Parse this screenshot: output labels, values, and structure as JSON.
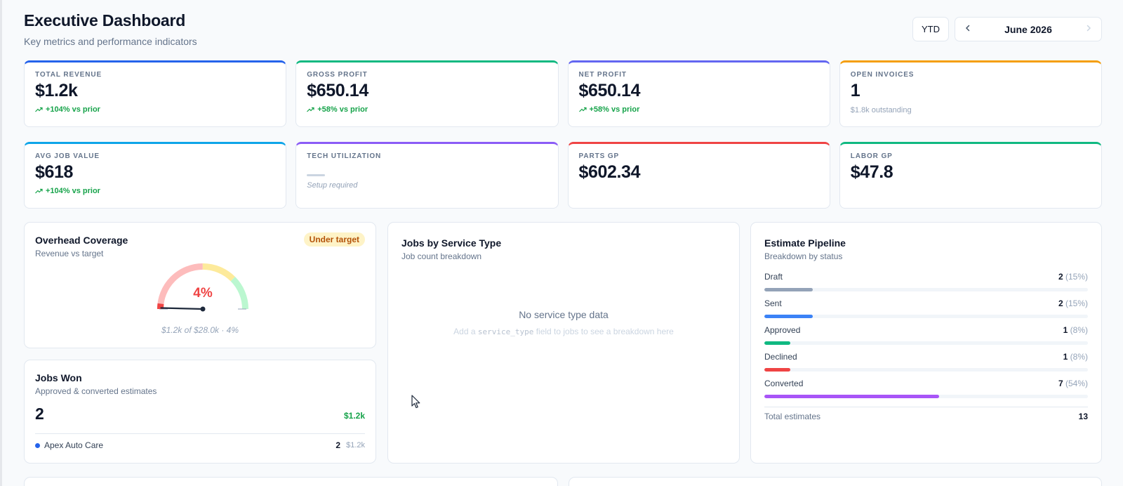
{
  "header": {
    "title": "Executive Dashboard",
    "subtitle": "Key metrics and performance indicators"
  },
  "controls": {
    "range_label": "YTD",
    "month_label": "June 2026",
    "prev_icon": "chevron-left-icon",
    "next_icon": "chevron-right-icon"
  },
  "kpis_row1": [
    {
      "label": "TOTAL REVENUE",
      "value": "$1.2k",
      "trend": "+104% vs prior",
      "accent": "#2563eb"
    },
    {
      "label": "GROSS PROFIT",
      "value": "$650.14",
      "trend": "+58% vs prior",
      "accent": "#10b981"
    },
    {
      "label": "NET PROFIT",
      "value": "$650.14",
      "trend": "+58% vs prior",
      "accent": "#6366f1"
    },
    {
      "label": "OPEN INVOICES",
      "value": "1",
      "note": "$1.8k outstanding",
      "accent": "#f59e0b"
    }
  ],
  "kpis_row2": [
    {
      "label": "AVG JOB VALUE",
      "value": "$618",
      "trend": "+104% vs prior",
      "accent": "#0ea5e9"
    },
    {
      "label": "TECH UTILIZATION",
      "note": "Setup required",
      "accent": "#8b5cf6"
    },
    {
      "label": "PARTS GP",
      "value": "$602.34",
      "accent": "#ef4444"
    },
    {
      "label": "LABOR GP",
      "value": "$47.8",
      "accent": "#10b981"
    }
  ],
  "overhead": {
    "title": "Overhead Coverage",
    "subtitle": "Revenue vs target",
    "badge": "Under target",
    "percent_label": "4%",
    "coverage_fraction": 0.04,
    "caption": "$1.2k of $28.0k · 4%"
  },
  "jobs_won": {
    "title": "Jobs Won",
    "subtitle": "Approved & converted estimates",
    "count": "2",
    "amount": "$1.2k",
    "customers": [
      {
        "name": "Apex Auto Care",
        "count": "2",
        "amount": "$1.2k",
        "color": "#2563eb"
      }
    ]
  },
  "service_type": {
    "title": "Jobs by Service Type",
    "subtitle": "Job count breakdown",
    "empty_title": "No service type data",
    "hint_prefix": "Add a",
    "hint_code": "service_type",
    "hint_suffix": "field to jobs to see a breakdown here"
  },
  "pipeline": {
    "title": "Estimate Pipeline",
    "subtitle": "Breakdown by status",
    "items": [
      {
        "label": "Draft",
        "count": "2",
        "pct": "(15%)",
        "fraction": 0.15,
        "color": "#94a3b8"
      },
      {
        "label": "Sent",
        "count": "2",
        "pct": "(15%)",
        "fraction": 0.15,
        "color": "#3b82f6"
      },
      {
        "label": "Approved",
        "count": "1",
        "pct": "(8%)",
        "fraction": 0.08,
        "color": "#10b981"
      },
      {
        "label": "Declined",
        "count": "1",
        "pct": "(8%)",
        "fraction": 0.08,
        "color": "#ef4444"
      },
      {
        "label": "Converted",
        "count": "7",
        "pct": "(54%)",
        "fraction": 0.54,
        "color": "#a855f7"
      }
    ],
    "total_label": "Total estimates",
    "total_value": "13"
  }
}
